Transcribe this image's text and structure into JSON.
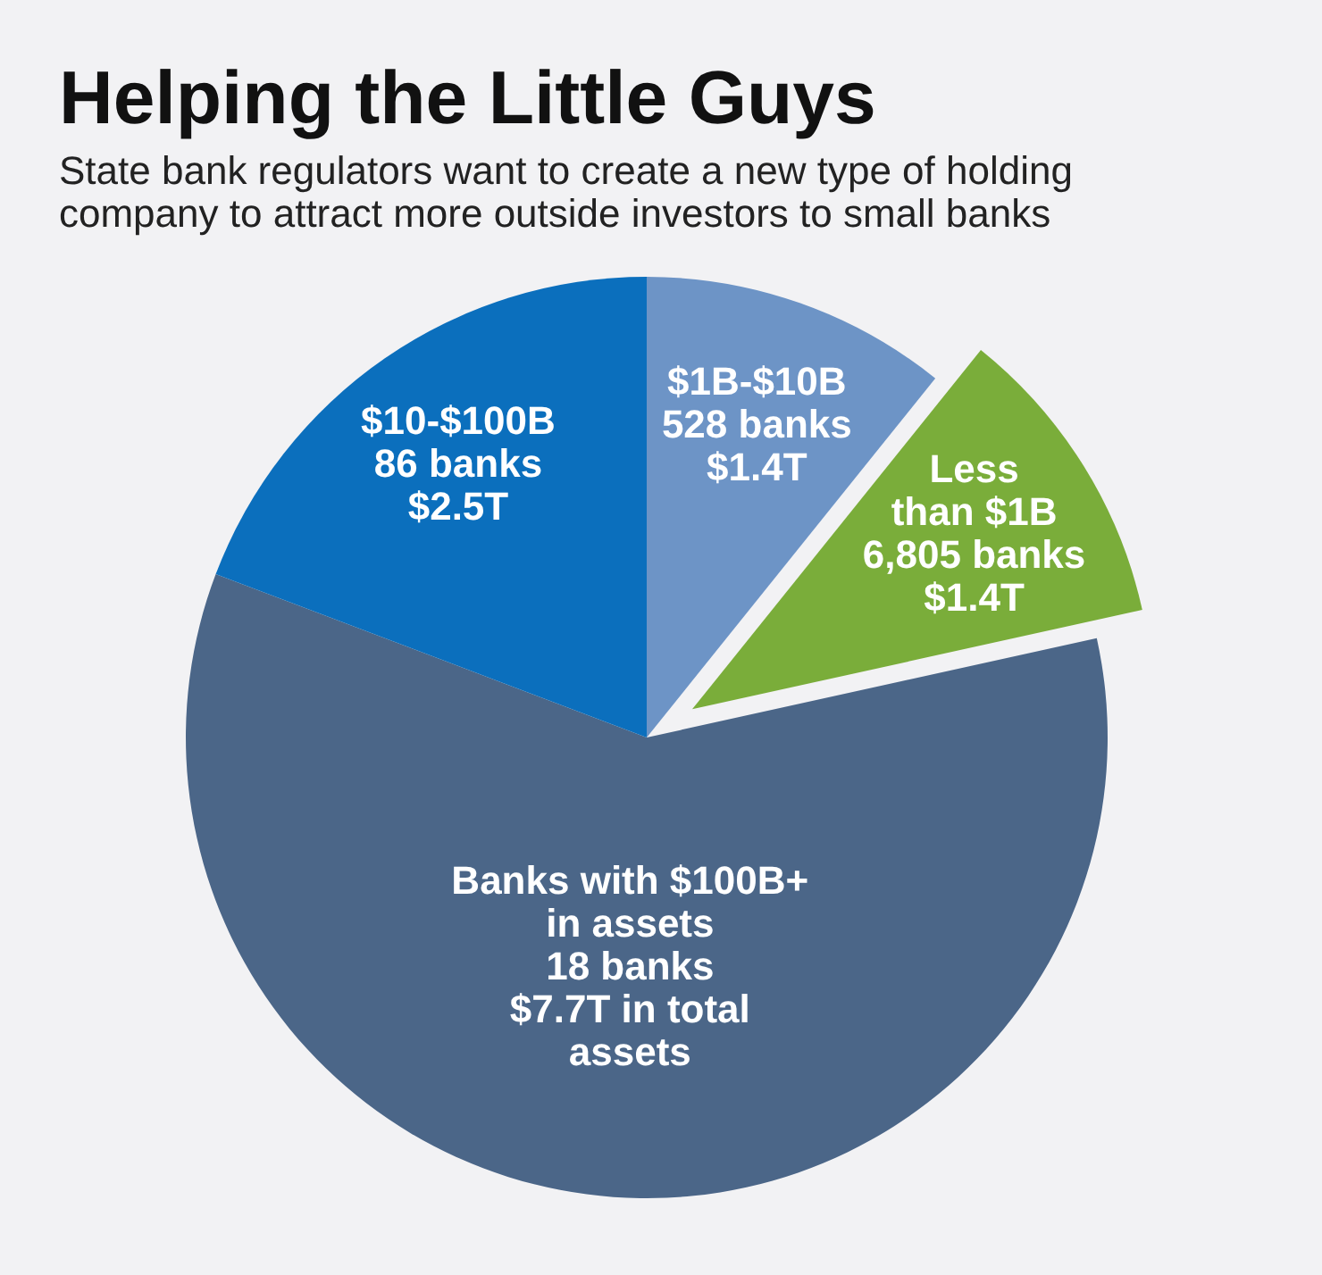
{
  "chart_data": {
    "type": "pie",
    "title": "Helping the Little Guys",
    "subtitle": "State bank regulators want to create a new type of holding company to attract more outside investors to small banks",
    "categories": [
      "$1B-$10B\n528 banks",
      "Less\nthan $1B\n6,805 banks",
      "Banks with $100B+\nin assets\n18 banks",
      "$10-$100B\n86 banks"
    ],
    "values": [
      1.4,
      1.4,
      7.7,
      2.5
    ],
    "value_labels": [
      "$1.4T",
      "$1.4T",
      "$7.7T in total\nassets",
      "$2.5T"
    ],
    "colors": [
      "#6d94c6",
      "#7aad3a",
      "#4b6688",
      "#0b6fbd"
    ]
  }
}
